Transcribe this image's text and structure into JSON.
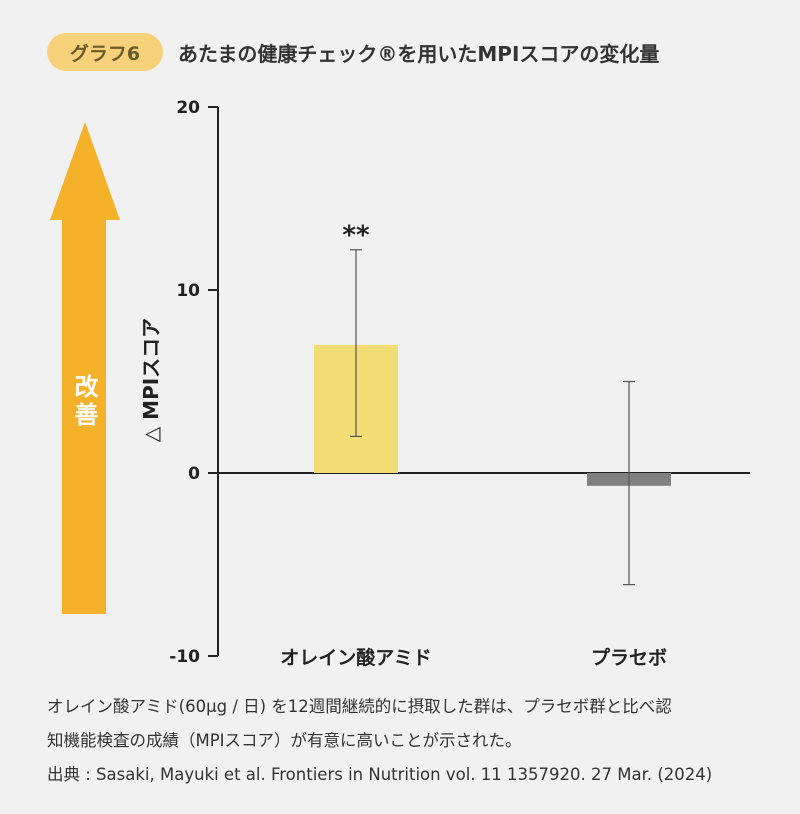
{
  "header": {
    "badge": "グラフ6",
    "title": "あたまの健康チェック®を用いたMPIスコアの変化量"
  },
  "arrow": {
    "label": "改善",
    "color": "#f5b12a"
  },
  "chart_data": {
    "type": "bar",
    "categories": [
      "オレイン酸アミド",
      "プラセボ"
    ],
    "values": [
      7.0,
      -0.7
    ],
    "errors": [
      {
        "low": 2.0,
        "high": 12.2
      },
      {
        "low": -6.1,
        "high": 5.0
      }
    ],
    "significance": [
      "**",
      ""
    ],
    "colors": [
      "#f2dc74",
      "#808080"
    ],
    "ylabel": "△ MPIスコア",
    "ylim": [
      -10,
      20
    ],
    "yticks": [
      -10,
      0,
      10,
      20
    ],
    "ytick_labels": [
      "-10",
      "0",
      "10",
      "20"
    ]
  },
  "caption": {
    "line1": "オレイン酸アミド(60μg / 日) を12週間継続的に摂取した群は、プラセボ群と比べ認",
    "line2": "知機能検査の成績（MPIスコア）が有意に高いことが示された。",
    "source": "出典 : Sasaki, Mayuki et al. Frontiers in Nutrition vol. 11 1357920. 27 Mar. (2024)"
  }
}
